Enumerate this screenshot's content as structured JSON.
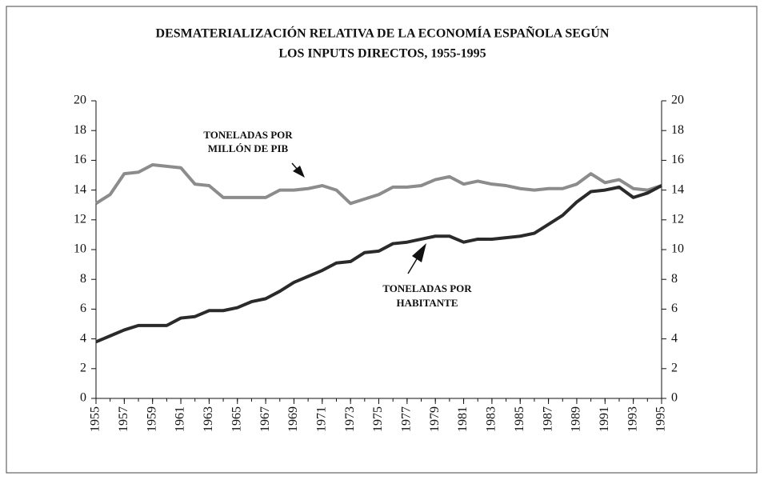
{
  "chart_data": {
    "type": "line",
    "title": [
      "DESMATERIALIZACIÓN RELATIVA DE LA ECONOMÍA ESPAÑOLA SEGÚN",
      "LOS INPUTS DIRECTOS, 1955-1995"
    ],
    "annotations": [
      {
        "lines": [
          "TONELADAS POR",
          "MILLÓN DE PIB"
        ]
      },
      {
        "lines": [
          "TONELADAS POR",
          "HABITANTE"
        ]
      }
    ],
    "x": [
      1955,
      1956,
      1957,
      1958,
      1959,
      1960,
      1961,
      1962,
      1963,
      1964,
      1965,
      1966,
      1967,
      1968,
      1969,
      1970,
      1971,
      1972,
      1973,
      1974,
      1975,
      1976,
      1977,
      1978,
      1979,
      1980,
      1981,
      1982,
      1983,
      1984,
      1985,
      1986,
      1987,
      1988,
      1989,
      1990,
      1991,
      1992,
      1993,
      1994,
      1995
    ],
    "xlim": [
      1955,
      1995
    ],
    "xticks": [
      1955,
      1957,
      1959,
      1961,
      1963,
      1965,
      1967,
      1969,
      1971,
      1973,
      1975,
      1977,
      1979,
      1981,
      1983,
      1985,
      1987,
      1989,
      1991,
      1993,
      1995
    ],
    "ylim": [
      0,
      20
    ],
    "yticks": [
      0,
      2,
      4,
      6,
      8,
      10,
      12,
      14,
      16,
      18,
      20
    ],
    "y2lim": [
      0,
      20
    ],
    "y2ticks": [
      0,
      2,
      4,
      6,
      8,
      10,
      12,
      14,
      16,
      18,
      20
    ],
    "series": [
      {
        "color": "#8c8c8c",
        "values": [
          13.1,
          13.7,
          15.1,
          15.2,
          15.7,
          15.6,
          15.5,
          14.4,
          14.3,
          13.5,
          13.5,
          13.5,
          13.5,
          14.0,
          14.0,
          14.1,
          14.3,
          14.0,
          13.1,
          13.4,
          13.7,
          14.2,
          14.2,
          14.3,
          14.7,
          14.9,
          14.4,
          14.6,
          14.4,
          14.3,
          14.1,
          14.0,
          14.1,
          14.1,
          14.4,
          15.1,
          14.5,
          14.7,
          14.1,
          14.0,
          14.3
        ]
      },
      {
        "color": "#2a2a2a",
        "values": [
          3.8,
          4.2,
          4.6,
          4.9,
          4.9,
          4.9,
          5.4,
          5.5,
          5.9,
          5.9,
          6.1,
          6.5,
          6.7,
          7.2,
          7.8,
          8.2,
          8.6,
          9.1,
          9.2,
          9.8,
          9.9,
          10.4,
          10.5,
          10.7,
          10.9,
          10.9,
          10.5,
          10.7,
          10.7,
          10.8,
          10.9,
          11.1,
          11.7,
          12.3,
          13.2,
          13.9,
          14.0,
          14.2,
          13.5,
          13.8,
          14.3
        ]
      }
    ]
  }
}
